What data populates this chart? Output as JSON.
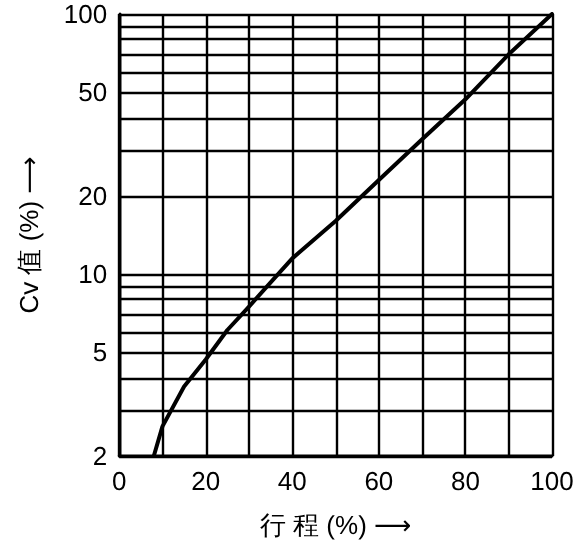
{
  "chart_data": {
    "type": "line",
    "xlabel": "行 程 (%) ⟶",
    "ylabel": "Cv 值 (%) ⟶",
    "x": [
      8,
      10,
      15,
      20,
      25,
      30,
      35,
      40,
      50,
      60,
      70,
      80,
      90,
      100
    ],
    "series": [
      {
        "color": "#000000",
        "values": [
          2,
          2.6,
          3.7,
          4.7,
          6.1,
          7.5,
          9.3,
          11.5,
          16,
          23,
          33,
          47,
          70,
          100
        ]
      }
    ],
    "log": "y",
    "xlim": [
      0,
      100
    ],
    "xticks": [
      0,
      {
        "value": 10,
        "label": null
      },
      20,
      {
        "value": 30,
        "label": null
      },
      40,
      {
        "value": 50,
        "label": null
      },
      60,
      {
        "value": 70,
        "label": null
      },
      80,
      {
        "value": 90,
        "label": null
      },
      100
    ],
    "ylim": [
      2,
      100
    ],
    "yticks": [
      2,
      {
        "value": 3,
        "label": null
      },
      {
        "value": 4,
        "label": null
      },
      5,
      {
        "value": 6,
        "label": null
      },
      {
        "value": 7,
        "label": null
      },
      {
        "value": 8,
        "label": null
      },
      {
        "value": 9,
        "label": null
      },
      10,
      20,
      {
        "value": 30,
        "label": null
      },
      {
        "value": 40,
        "label": null
      },
      50,
      {
        "value": 60,
        "label": null
      },
      {
        "value": 70,
        "label": null
      },
      {
        "value": 80,
        "label": null
      },
      {
        "value": 90,
        "label": null
      },
      100
    ],
    "grid": true,
    "marker": "none",
    "line_style": "solid"
  }
}
